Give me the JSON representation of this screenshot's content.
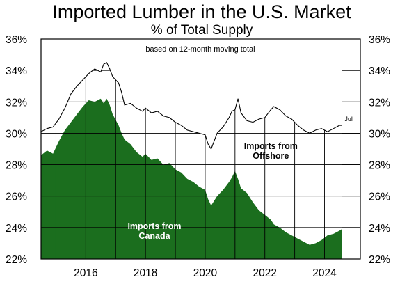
{
  "chart_data": {
    "type": "area",
    "title": "Imported Lumber in the U.S. Market",
    "subtitle": "% of Total Supply",
    "note": "based on 12-month moving total",
    "xlabel": "",
    "ylabel": "",
    "xlim": [
      2014.5,
      2025.2
    ],
    "ylim": [
      22,
      36
    ],
    "y_ticks": [
      "22%",
      "24%",
      "26%",
      "28%",
      "30%",
      "32%",
      "34%",
      "36%"
    ],
    "x_ticks": [
      "2016",
      "2018",
      "2020",
      "2022",
      "2024"
    ],
    "grid": true,
    "end_label": "Jul",
    "annotations": [
      {
        "lines": [
          "Imports from",
          "Offshore"
        ],
        "x": 2022.2,
        "y": 29.0
      },
      {
        "lines": [
          "Imports from",
          "Canada"
        ],
        "x": 2018.3,
        "y": 23.9
      }
    ],
    "series": [
      {
        "name": "Total imports",
        "color": "#000000",
        "x": [
          2014.5,
          2014.7,
          2014.9,
          2015.1,
          2015.3,
          2015.5,
          2015.7,
          2015.9,
          2016.1,
          2016.3,
          2016.5,
          2016.6,
          2016.7,
          2016.8,
          2016.9,
          2017.1,
          2017.2,
          2017.3,
          2017.5,
          2017.7,
          2017.9,
          2018.0,
          2018.2,
          2018.4,
          2018.6,
          2018.8,
          2019.0,
          2019.2,
          2019.4,
          2019.6,
          2019.8,
          2020.0,
          2020.1,
          2020.2,
          2020.4,
          2020.6,
          2020.8,
          2020.9,
          2021.0,
          2021.1,
          2021.2,
          2021.4,
          2021.6,
          2021.8,
          2022.0,
          2022.2,
          2022.3,
          2022.5,
          2022.7,
          2022.9,
          2023.1,
          2023.3,
          2023.5,
          2023.7,
          2023.9,
          2024.1,
          2024.3,
          2024.5,
          2024.58
        ],
        "values": [
          30.1,
          30.3,
          30.4,
          30.9,
          31.6,
          32.5,
          33.0,
          33.4,
          33.8,
          34.1,
          33.9,
          34.4,
          34.5,
          34.1,
          33.6,
          33.2,
          32.6,
          31.8,
          31.9,
          31.6,
          31.4,
          31.6,
          31.3,
          31.4,
          31.1,
          31.0,
          30.7,
          30.5,
          30.2,
          30.1,
          30.0,
          29.9,
          29.3,
          29.0,
          30.0,
          30.4,
          31.0,
          31.4,
          31.5,
          32.2,
          31.3,
          30.8,
          30.7,
          30.9,
          31.0,
          31.5,
          31.7,
          31.5,
          31.1,
          30.9,
          30.5,
          30.2,
          30.0,
          30.2,
          30.3,
          30.1,
          30.3,
          30.5,
          30.5
        ]
      },
      {
        "name": "Imports from Canada",
        "color": "#1b6e1e",
        "x": [
          2014.5,
          2014.7,
          2014.9,
          2015.1,
          2015.3,
          2015.5,
          2015.7,
          2015.9,
          2016.1,
          2016.3,
          2016.5,
          2016.6,
          2016.7,
          2016.8,
          2016.9,
          2017.1,
          2017.2,
          2017.3,
          2017.5,
          2017.7,
          2017.9,
          2018.0,
          2018.2,
          2018.4,
          2018.6,
          2018.8,
          2019.0,
          2019.2,
          2019.4,
          2019.6,
          2019.8,
          2020.0,
          2020.1,
          2020.2,
          2020.4,
          2020.6,
          2020.8,
          2020.9,
          2021.0,
          2021.1,
          2021.2,
          2021.4,
          2021.6,
          2021.8,
          2022.0,
          2022.2,
          2022.3,
          2022.5,
          2022.7,
          2022.9,
          2023.1,
          2023.3,
          2023.5,
          2023.7,
          2023.9,
          2024.1,
          2024.3,
          2024.5,
          2024.58
        ],
        "values": [
          28.6,
          28.9,
          28.7,
          29.5,
          30.2,
          30.7,
          31.2,
          31.7,
          32.1,
          32.0,
          32.2,
          31.9,
          32.2,
          31.8,
          31.2,
          30.5,
          30.0,
          29.6,
          29.3,
          28.8,
          28.5,
          28.7,
          28.3,
          28.4,
          28.0,
          28.1,
          27.7,
          27.5,
          27.1,
          26.9,
          26.6,
          26.4,
          25.8,
          25.4,
          26.0,
          26.4,
          26.9,
          27.2,
          27.6,
          27.1,
          26.5,
          26.2,
          25.6,
          25.1,
          24.8,
          24.5,
          24.2,
          24.0,
          23.7,
          23.5,
          23.3,
          23.1,
          22.9,
          23.0,
          23.2,
          23.5,
          23.6,
          23.8,
          23.9
        ]
      }
    ]
  }
}
